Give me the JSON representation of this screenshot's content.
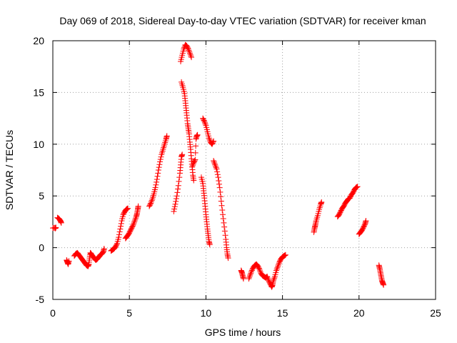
{
  "chart_data": {
    "type": "scatter",
    "title": "Day 069 of 2018, Sidereal Day-to-day VTEC variation (SDTVAR) for receiver kman",
    "xlabel": "GPS time / hours",
    "ylabel": "SDTVAR / TECUs",
    "xlim": [
      0,
      25
    ],
    "ylim": [
      -5,
      20
    ],
    "xticks": [
      0,
      5,
      10,
      15,
      20,
      25
    ],
    "yticks": [
      -5,
      0,
      5,
      10,
      15,
      20
    ],
    "xtick_labels": [
      "0",
      "5",
      "10",
      "15",
      "20",
      "25"
    ],
    "ytick_labels": [
      "-5",
      "0",
      "5",
      "10",
      "15",
      "20"
    ],
    "grid": true,
    "marker": "+",
    "color": "#ff0000",
    "series": [
      {
        "name": "SDTVAR",
        "segments": [
          [
            [
              0.0,
              1.9
            ],
            [
              0.2,
              1.95
            ],
            [
              0.15,
              1.85
            ]
          ],
          [
            [
              0.3,
              2.9
            ],
            [
              0.4,
              2.8
            ],
            [
              0.5,
              2.6
            ],
            [
              0.55,
              2.4
            ]
          ],
          [
            [
              0.9,
              -1.2
            ],
            [
              0.95,
              -1.4
            ],
            [
              1.0,
              -1.6
            ],
            [
              1.05,
              -1.3
            ]
          ],
          [
            [
              1.4,
              -0.8
            ],
            [
              1.5,
              -0.6
            ],
            [
              1.6,
              -0.5
            ],
            [
              1.7,
              -0.7
            ],
            [
              1.8,
              -0.9
            ],
            [
              1.9,
              -1.1
            ],
            [
              2.0,
              -1.3
            ],
            [
              2.1,
              -1.5
            ],
            [
              2.2,
              -1.7
            ],
            [
              2.3,
              -1.8
            ],
            [
              2.35,
              -1.6
            ],
            [
              2.4,
              -1.0
            ],
            [
              2.45,
              -0.5
            ],
            [
              2.5,
              -0.6
            ],
            [
              2.6,
              -0.8
            ],
            [
              2.7,
              -1.0
            ],
            [
              2.8,
              -1.2
            ],
            [
              2.9,
              -1.1
            ],
            [
              3.0,
              -0.9
            ],
            [
              3.1,
              -0.7
            ],
            [
              3.2,
              -0.6
            ],
            [
              3.3,
              -0.4
            ],
            [
              3.35,
              -0.1
            ]
          ],
          [
            [
              3.8,
              -0.3
            ],
            [
              3.9,
              -0.2
            ],
            [
              4.0,
              -0.1
            ],
            [
              4.1,
              0.1
            ],
            [
              4.2,
              0.4
            ],
            [
              4.3,
              1.0
            ],
            [
              4.4,
              1.8
            ],
            [
              4.5,
              2.6
            ],
            [
              4.6,
              3.2
            ],
            [
              4.7,
              3.5
            ],
            [
              4.8,
              3.7
            ],
            [
              4.9,
              3.8
            ]
          ],
          [
            [
              4.75,
              0.9
            ],
            [
              4.85,
              1.1
            ],
            [
              4.95,
              1.3
            ],
            [
              5.05,
              1.6
            ],
            [
              5.15,
              1.9
            ],
            [
              5.25,
              2.2
            ],
            [
              5.35,
              2.6
            ],
            [
              5.45,
              3.0
            ],
            [
              5.5,
              3.3
            ],
            [
              5.55,
              3.7
            ],
            [
              5.58,
              4.0
            ]
          ],
          [
            [
              6.3,
              4.0
            ],
            [
              6.4,
              4.3
            ],
            [
              6.5,
              4.7
            ],
            [
              6.6,
              5.2
            ],
            [
              6.7,
              5.8
            ],
            [
              6.8,
              6.6
            ],
            [
              6.9,
              7.5
            ],
            [
              7.0,
              8.3
            ],
            [
              7.1,
              9.0
            ],
            [
              7.2,
              9.5
            ],
            [
              7.3,
              10.0
            ],
            [
              7.4,
              10.5
            ],
            [
              7.45,
              10.8
            ]
          ],
          [
            [
              7.9,
              3.5
            ],
            [
              8.0,
              4.2
            ],
            [
              8.1,
              5.0
            ],
            [
              8.2,
              6.0
            ],
            [
              8.3,
              7.2
            ],
            [
              8.35,
              8.0
            ],
            [
              8.4,
              8.8
            ],
            [
              8.45,
              9.0
            ]
          ],
          [
            [
              8.35,
              18.0
            ],
            [
              8.45,
              18.6
            ],
            [
              8.55,
              19.2
            ],
            [
              8.65,
              19.6
            ],
            [
              8.75,
              19.5
            ],
            [
              8.85,
              19.2
            ],
            [
              8.95,
              18.8
            ],
            [
              9.05,
              18.4
            ]
          ],
          [
            [
              8.4,
              16.0
            ],
            [
              8.5,
              15.5
            ],
            [
              8.6,
              14.9
            ],
            [
              8.65,
              14.2
            ],
            [
              8.7,
              13.5
            ],
            [
              8.75,
              12.8
            ],
            [
              8.8,
              12.0
            ],
            [
              8.85,
              11.5
            ],
            [
              8.9,
              11.0
            ],
            [
              8.95,
              10.2
            ],
            [
              9.0,
              9.5
            ],
            [
              9.05,
              8.6
            ],
            [
              9.1,
              7.8
            ],
            [
              9.15,
              7.0
            ],
            [
              9.2,
              6.5
            ]
          ],
          [
            [
              9.1,
              7.8
            ],
            [
              9.2,
              8.2
            ],
            [
              9.3,
              8.5
            ],
            [
              9.35,
              10.5
            ],
            [
              9.4,
              10.8
            ],
            [
              9.45,
              10.9
            ]
          ],
          [
            [
              9.7,
              6.8
            ],
            [
              9.8,
              6.2
            ],
            [
              9.85,
              5.5
            ],
            [
              9.9,
              4.8
            ],
            [
              9.95,
              4.0
            ],
            [
              10.0,
              3.2
            ],
            [
              10.05,
              2.5
            ],
            [
              10.1,
              1.8
            ],
            [
              10.15,
              1.2
            ],
            [
              10.2,
              0.6
            ],
            [
              10.25,
              0.3
            ]
          ],
          [
            [
              9.8,
              12.5
            ],
            [
              9.9,
              12.2
            ],
            [
              10.0,
              11.8
            ],
            [
              10.1,
              11.2
            ],
            [
              10.2,
              10.6
            ],
            [
              10.3,
              10.2
            ],
            [
              10.4,
              10.0
            ],
            [
              10.5,
              10.3
            ]
          ],
          [
            [
              10.5,
              8.4
            ],
            [
              10.6,
              8.0
            ],
            [
              10.7,
              7.6
            ],
            [
              10.8,
              6.8
            ],
            [
              10.9,
              5.8
            ],
            [
              11.0,
              4.5
            ],
            [
              11.1,
              3.2
            ],
            [
              11.2,
              2.0
            ],
            [
              11.3,
              0.8
            ],
            [
              11.35,
              0.0
            ],
            [
              11.4,
              -0.6
            ],
            [
              11.45,
              -1.0
            ]
          ],
          [
            [
              12.3,
              -2.2
            ],
            [
              12.35,
              -2.4
            ],
            [
              12.4,
              -2.7
            ],
            [
              12.45,
              -3.0
            ]
          ],
          [
            [
              12.8,
              -3.0
            ],
            [
              12.9,
              -2.6
            ],
            [
              13.0,
              -2.2
            ],
            [
              13.1,
              -1.9
            ],
            [
              13.2,
              -1.7
            ],
            [
              13.3,
              -1.6
            ],
            [
              13.4,
              -1.8
            ],
            [
              13.5,
              -2.1
            ],
            [
              13.6,
              -2.5
            ],
            [
              13.7,
              -2.7
            ],
            [
              13.8,
              -2.8
            ],
            [
              13.9,
              -2.9
            ],
            [
              14.0,
              -2.8
            ]
          ],
          [
            [
              14.0,
              -2.8
            ],
            [
              14.1,
              -3.2
            ],
            [
              14.2,
              -3.5
            ],
            [
              14.3,
              -3.8
            ],
            [
              14.35,
              -3.6
            ],
            [
              14.4,
              -3.2
            ],
            [
              14.5,
              -2.8
            ],
            [
              14.6,
              -2.2
            ],
            [
              14.7,
              -1.8
            ],
            [
              14.8,
              -1.4
            ],
            [
              14.9,
              -1.1
            ],
            [
              15.0,
              -0.9
            ],
            [
              15.1,
              -0.8
            ],
            [
              15.2,
              -0.7
            ]
          ],
          [
            [
              17.05,
              1.5
            ],
            [
              17.1,
              1.9
            ],
            [
              17.15,
              2.2
            ],
            [
              17.2,
              2.6
            ],
            [
              17.3,
              3.1
            ],
            [
              17.4,
              3.7
            ],
            [
              17.5,
              4.2
            ],
            [
              17.55,
              4.4
            ]
          ],
          [
            [
              18.6,
              3.0
            ],
            [
              18.7,
              3.2
            ],
            [
              18.8,
              3.5
            ],
            [
              18.9,
              3.8
            ],
            [
              19.0,
              4.0
            ],
            [
              19.1,
              4.3
            ],
            [
              19.2,
              4.5
            ],
            [
              19.3,
              4.7
            ],
            [
              19.4,
              4.8
            ],
            [
              19.5,
              5.1
            ],
            [
              19.6,
              5.3
            ],
            [
              19.7,
              5.6
            ],
            [
              19.8,
              5.8
            ],
            [
              19.9,
              5.9
            ]
          ],
          [
            [
              20.0,
              1.3
            ],
            [
              20.1,
              1.5
            ],
            [
              20.2,
              1.7
            ],
            [
              20.3,
              2.0
            ],
            [
              20.4,
              2.3
            ],
            [
              20.45,
              2.6
            ]
          ],
          [
            [
              21.3,
              -1.7
            ],
            [
              21.35,
              -2.0
            ],
            [
              21.4,
              -2.4
            ],
            [
              21.45,
              -2.8
            ],
            [
              21.5,
              -3.2
            ],
            [
              21.55,
              -3.4
            ],
            [
              21.6,
              -3.6
            ]
          ]
        ]
      }
    ]
  }
}
